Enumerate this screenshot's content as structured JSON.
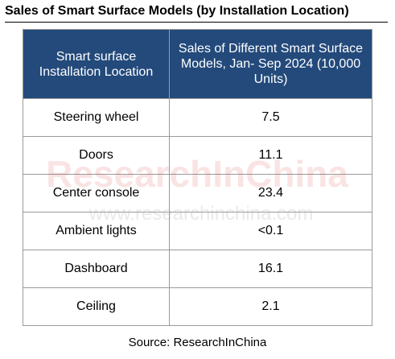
{
  "title": "Sales of Smart Surface Models (by Installation Location)",
  "source": "Source: ResearchInChina",
  "watermark": {
    "logo": "ResearchInChina",
    "url": "www.researchinchina.com"
  },
  "colors": {
    "header_bg": "#234a7b",
    "header_text": "#ffffff",
    "grid": "#9a9a9a"
  },
  "chart_data": {
    "type": "table",
    "title": "Sales of Smart Surface Models (by Installation Location)",
    "columns": [
      "Smart surface Installation Location",
      "Sales of Different Smart Surface Models, Jan- Sep 2024 (10,000 Units)"
    ],
    "rows": [
      {
        "location": "Steering wheel",
        "sales": "7.5"
      },
      {
        "location": "Doors",
        "sales": "11.1"
      },
      {
        "location": "Center console",
        "sales": "23.4"
      },
      {
        "location": "Ambient lights",
        "sales": "<0.1"
      },
      {
        "location": "Dashboard",
        "sales": "16.1"
      },
      {
        "location": "Ceiling",
        "sales": "2.1"
      }
    ]
  }
}
